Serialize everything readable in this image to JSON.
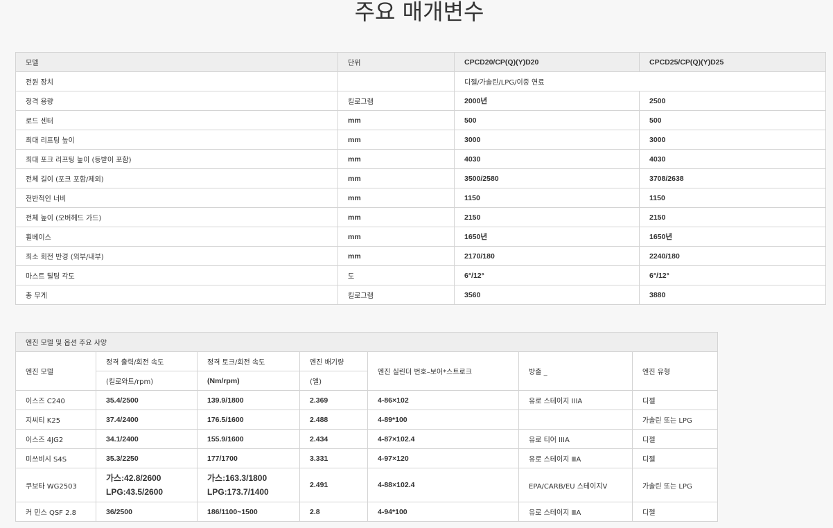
{
  "page_title": "주요 매개변수",
  "params": {
    "headers": [
      "모델",
      "단위",
      "CPCD20/CP(Q)(Y)D20",
      "CPCD25/CP(Q)(Y)D25"
    ],
    "power_row": {
      "label": "전원 장치",
      "unit": "",
      "value": "디젤/가솔린/LPG/이중 연료"
    },
    "rows": [
      [
        "정격 용량",
        "킬로그램",
        "2000년",
        "2500"
      ],
      [
        "로드 센터",
        "mm",
        "500",
        "500"
      ],
      [
        "최대 리프팅 높이",
        "mm",
        "3000",
        "3000"
      ],
      [
        "최대 포크 리프팅 높이 (등받이 포함)",
        "mm",
        "4030",
        "4030"
      ],
      [
        "전체 길이 (포크 포함/제외)",
        "mm",
        "3500/2580",
        "3708/2638"
      ],
      [
        "전반적인 너비",
        "mm",
        "1150",
        "1150"
      ],
      [
        "전체 높이 (오버헤드 가드)",
        "mm",
        "2150",
        "2150"
      ],
      [
        "휠베이스",
        "mm",
        "1650년",
        "1650년"
      ],
      [
        "최소 회전 반경 (외부/내부)",
        "mm",
        "2170/180",
        "2240/180"
      ],
      [
        "마스트 틸팅 각도",
        "도",
        "6°/12°",
        "6°/12°"
      ],
      [
        "총 무게",
        "킬로그램",
        "3560",
        "3880"
      ]
    ]
  },
  "engines": {
    "title": "엔진 모델 및 옵션 주요 사양",
    "headers": {
      "model": "엔진 모델",
      "power": "정격 출력/회전 속도",
      "power_unit": "(킬로와트/rpm)",
      "torque": "정격 토크/회전 속도",
      "torque_unit": "(Nm/rpm)",
      "displacement": "엔진 배기량",
      "displacement_unit": "(엘)",
      "cylinder": "엔진 실린더 번호–보어*스트로크",
      "emission": "방출 _",
      "type": "엔진 유형"
    },
    "rows": [
      {
        "model": "이스즈 C240",
        "power": "35.4/2500",
        "torque": "139.9/1800",
        "displacement": "2.369",
        "cylinder": "4-86×102",
        "emission": "유로 스테이지 IIIA",
        "type": "디젤"
      },
      {
        "model": "지씨티 K25",
        "power": "37.4/2400",
        "torque": "176.5/1600",
        "displacement": "2.488",
        "cylinder": "4-89*100",
        "emission": "",
        "type": "가솔린 또는 LPG"
      },
      {
        "model": "이스즈 4JG2",
        "power": "34.1/2400",
        "torque": "155.9/1600",
        "displacement": "2.434",
        "cylinder": "4-87×102.4",
        "emission": "유로 티어 IIIA",
        "type": "디젤"
      },
      {
        "model": "미쓰비시 S4S",
        "power": "35.3/2250",
        "torque": "177/1700",
        "displacement": "3.331",
        "cylinder": "4-97×120",
        "emission": "유로 스테이지 ⅢA",
        "type": "디젤"
      },
      {
        "model": "쿠보타 WG2503",
        "power": "가스:42.8/2600",
        "power2": "LPG:43.5/2600",
        "torque": "가스:163.3/1800",
        "torque2": "LPG:173.7/1400",
        "displacement": "2.491",
        "cylinder": "4-88×102.4",
        "emission": "EPA/CARB/EU 스테이지V",
        "type": "가솔린 또는 LPG"
      },
      {
        "model": "커 민스 QSF 2.8",
        "power": "36/2500",
        "torque": "186/1100~1500",
        "displacement": "2.8",
        "cylinder": "4-94*100",
        "emission": "유로 스테이지 ⅢA",
        "type": "디젤"
      }
    ]
  }
}
